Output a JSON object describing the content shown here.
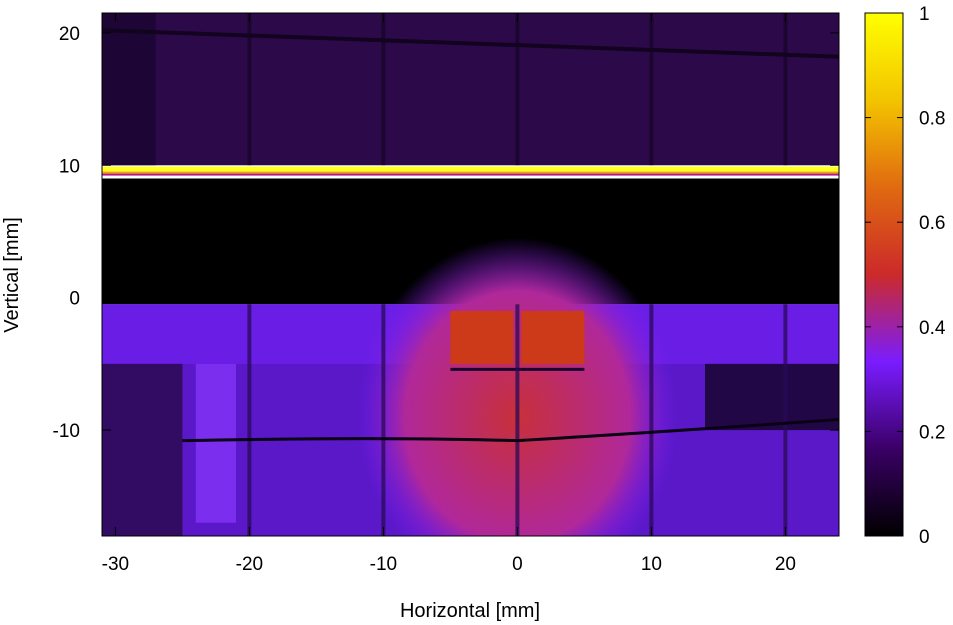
{
  "chart_data": {
    "type": "heatmap",
    "title": "",
    "xlabel": "Horizontal [mm]",
    "ylabel": "Vertical [mm]",
    "xlim": [
      -31,
      24
    ],
    "ylim": [
      -18,
      21.5
    ],
    "x_ticks": [
      -30,
      -20,
      -10,
      0,
      10,
      20
    ],
    "x_tick_labels": [
      "-30",
      "-20",
      "-10",
      "0",
      "10",
      "20"
    ],
    "y_ticks": [
      -10,
      0,
      10,
      20
    ],
    "y_tick_labels": [
      "-10",
      "0",
      "10",
      "20"
    ],
    "colorbar": {
      "range": [
        0,
        1
      ],
      "ticks": [
        0,
        0.2,
        0.4,
        0.6,
        0.8,
        1
      ],
      "tick_labels": [
        "0",
        "0.2",
        "0.4",
        "0.6",
        "0.8",
        "1"
      ],
      "colormap": "black-purple-red-yellow",
      "stops": [
        "#000000",
        "#3a0066",
        "#7a1cff",
        "#cc2a2a",
        "#e06a10",
        "#f3c400",
        "#ffff00"
      ]
    },
    "grid": true,
    "features": {
      "upper_region": {
        "y_range": [
          10,
          21.5
        ],
        "value": 0.08
      },
      "bright_line": {
        "y": 9.5,
        "value": 1.0
      },
      "dark_band": {
        "y_range": [
          -0.5,
          9
        ],
        "value": 0.0
      },
      "lower_region": {
        "y_range": [
          -18,
          -0.5
        ],
        "value": 0.28
      },
      "hot_spot": {
        "x_range": [
          -10,
          10
        ],
        "y_range": [
          -18,
          -1
        ],
        "value": 0.55
      },
      "brightest_blocks": {
        "x_range": [
          -5,
          5
        ],
        "y_range": [
          -5,
          -1
        ],
        "value": 0.6
      },
      "dark_lines_x": [
        -20,
        -10,
        0,
        10,
        20
      ],
      "dark_lines_y": [
        -10.5,
        20
      ]
    }
  }
}
